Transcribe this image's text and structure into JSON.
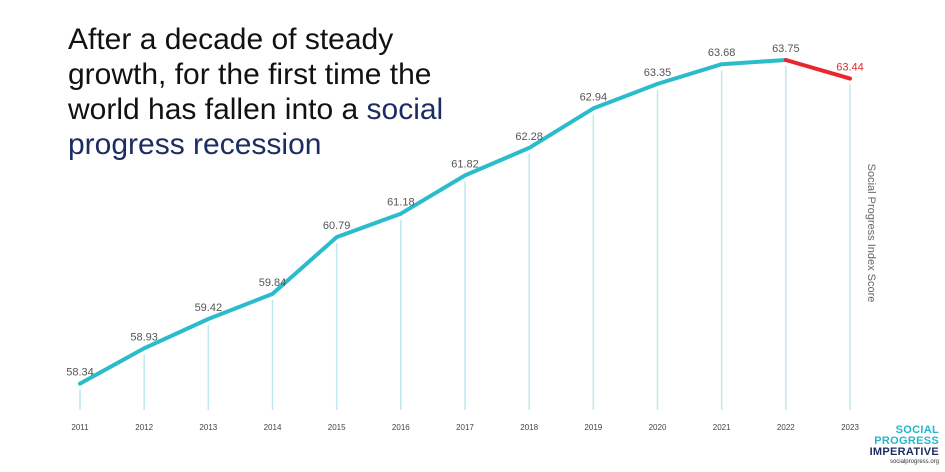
{
  "headline": {
    "part1": "After a decade of steady growth, for the first time the world has fallen into a ",
    "highlight": "social progress recession"
  },
  "chart_data": {
    "type": "line",
    "title": "",
    "xlabel": "",
    "ylabel": "Social Progress Index Score",
    "categories": [
      "2011",
      "2012",
      "2013",
      "2014",
      "2015",
      "2016",
      "2017",
      "2018",
      "2019",
      "2020",
      "2021",
      "2022",
      "2023"
    ],
    "series": [
      {
        "values": [
          58.34,
          58.93,
          59.42,
          59.84,
          60.79,
          61.18,
          61.82,
          62.28,
          62.94,
          63.35,
          63.68,
          63.75,
          63.44
        ],
        "labels": [
          "58.34",
          "58.93",
          "59.42",
          "59.84",
          "60.79",
          "61.18",
          "61.82",
          "62.28",
          "62.94",
          "63.35",
          "63.68",
          "63.75",
          "63.44"
        ],
        "color": "#2bbccc",
        "decline_color": "#e8262b"
      }
    ],
    "ylim": [
      58.2,
      63.8
    ],
    "grid": false,
    "legend": "none"
  },
  "logo": {
    "line1": "SOCIAL",
    "line2": "PROGRESS",
    "line3": "IMPERATIVE",
    "url": "socialprogress.org"
  }
}
